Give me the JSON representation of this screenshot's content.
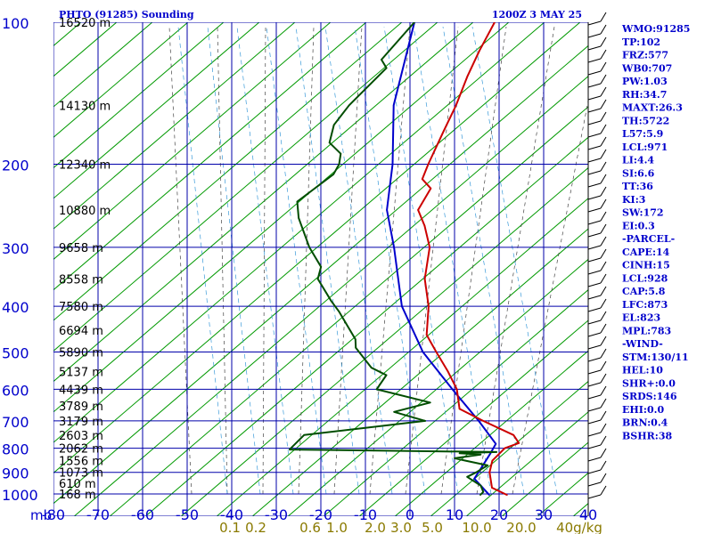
{
  "title": "PHTO (91285) Sounding",
  "valid_time": "1200Z  3 MAY 25",
  "colors": {
    "grid": "#0000aa",
    "label_blue": "#0000cc",
    "label_olive": "#8a7a00",
    "dry_adiabat": "#009900",
    "moist_adiabat": "#444444",
    "mixing_ratio": "#3a9ad9",
    "temperature": "#cc0000",
    "dewpoint": "#004d00",
    "parcel": "#0000cc",
    "wind": "#000000"
  },
  "indices": [
    "WMO:91285",
    "TP:102",
    "FRZ:577",
    "WB0:707",
    "PW:1.03",
    "RH:34.7",
    "MAXT:26.3",
    "TH:5722",
    "L57:5.9",
    "LCL:971",
    "LI:4.4",
    "SI:6.6",
    "TT:36",
    "KI:3",
    "SW:172",
    "EI:0.3",
    "-PARCEL-",
    "CAPE:14",
    "CINH:15",
    "LCL:928",
    "CAP:5.8",
    "LFC:873",
    "EL:823",
    "MPL:783",
    "-WIND-",
    "STM:130/11",
    "HEL:10",
    "SHR+:0.0",
    "SRDS:146",
    "EHI:0.0",
    "BRN:0.4",
    "BSHR:38"
  ],
  "chart_data": {
    "type": "skew-t",
    "x_unit_label": "mb",
    "mixing_ratio_unit": "g/kg",
    "xlim": [
      -80,
      40
    ],
    "plim": [
      1000,
      100
    ],
    "x_ticks": [
      -80,
      -70,
      -60,
      -50,
      -40,
      -30,
      -20,
      -10,
      0,
      10,
      20,
      30,
      40
    ],
    "pressure_ticks": [
      100,
      200,
      300,
      400,
      500,
      600,
      700,
      800,
      900,
      1000
    ],
    "mixing_ratio_labels": [
      "0.1",
      "0.2",
      "0.6",
      "1.0",
      "2.0",
      "3.0",
      "5.0",
      "10.0",
      "20.0",
      "40g/kg"
    ],
    "heights": [
      {
        "p": 100,
        "label": "16520 m"
      },
      {
        "p": 150,
        "label": "14130 m"
      },
      {
        "p": 200,
        "label": "12340 m"
      },
      {
        "p": 250,
        "label": "10880 m"
      },
      {
        "p": 300,
        "label": "9658 m"
      },
      {
        "p": 350,
        "label": "8558 m"
      },
      {
        "p": 400,
        "label": "7580 m"
      },
      {
        "p": 450,
        "label": "6694 m"
      },
      {
        "p": 500,
        "label": "5890 m"
      },
      {
        "p": 550,
        "label": "5137 m"
      },
      {
        "p": 600,
        "label": "4439 m"
      },
      {
        "p": 650,
        "label": "3789 m"
      },
      {
        "p": 700,
        "label": "3179 m"
      },
      {
        "p": 750,
        "label": "2603 m"
      },
      {
        "p": 800,
        "label": "2062 m"
      },
      {
        "p": 850,
        "label": "1556 m"
      },
      {
        "p": 900,
        "label": "1073 m"
      },
      {
        "p": 950,
        "label": "610 m"
      },
      {
        "p": 1000,
        "label": "168 m"
      }
    ],
    "temperature": [
      {
        "p": 1005,
        "x": 22
      },
      {
        "p": 970,
        "x": 17
      },
      {
        "p": 900,
        "x": 13
      },
      {
        "p": 850,
        "x": 11
      },
      {
        "p": 800,
        "x": 11
      },
      {
        "p": 780,
        "x": 13
      },
      {
        "p": 750,
        "x": 10
      },
      {
        "p": 700,
        "x": 0
      },
      {
        "p": 660,
        "x": -8
      },
      {
        "p": 600,
        "x": -13
      },
      {
        "p": 550,
        "x": -19
      },
      {
        "p": 500,
        "x": -26
      },
      {
        "p": 460,
        "x": -32
      },
      {
        "p": 400,
        "x": -38
      },
      {
        "p": 350,
        "x": -45
      },
      {
        "p": 300,
        "x": -51
      },
      {
        "p": 270,
        "x": -57
      },
      {
        "p": 250,
        "x": -62
      },
      {
        "p": 225,
        "x": -64
      },
      {
        "p": 215,
        "x": -68
      },
      {
        "p": 200,
        "x": -70
      },
      {
        "p": 170,
        "x": -74
      },
      {
        "p": 150,
        "x": -77
      },
      {
        "p": 130,
        "x": -81
      },
      {
        "p": 115,
        "x": -84
      },
      {
        "p": 100,
        "x": -87
      }
    ],
    "dewpoint": [
      {
        "p": 1005,
        "x": 16
      },
      {
        "p": 990,
        "x": 16
      },
      {
        "p": 960,
        "x": 14
      },
      {
        "p": 920,
        "x": 9
      },
      {
        "p": 900,
        "x": 10
      },
      {
        "p": 870,
        "x": 11
      },
      {
        "p": 850,
        "x": 5
      },
      {
        "p": 840,
        "x": 2
      },
      {
        "p": 825,
        "x": 7
      },
      {
        "p": 820,
        "x": 2
      },
      {
        "p": 815,
        "x": 10
      },
      {
        "p": 805,
        "x": -37
      },
      {
        "p": 750,
        "x": -37
      },
      {
        "p": 700,
        "x": -13
      },
      {
        "p": 670,
        "x": -22
      },
      {
        "p": 640,
        "x": -16
      },
      {
        "p": 600,
        "x": -31
      },
      {
        "p": 560,
        "x": -32
      },
      {
        "p": 540,
        "x": -37
      },
      {
        "p": 490,
        "x": -45
      },
      {
        "p": 470,
        "x": -47
      },
      {
        "p": 410,
        "x": -57
      },
      {
        "p": 390,
        "x": -61
      },
      {
        "p": 350,
        "x": -69
      },
      {
        "p": 330,
        "x": -71
      },
      {
        "p": 300,
        "x": -78
      },
      {
        "p": 260,
        "x": -87
      },
      {
        "p": 240,
        "x": -91
      },
      {
        "p": 210,
        "x": -89
      },
      {
        "p": 200,
        "x": -90
      },
      {
        "p": 190,
        "x": -92
      },
      {
        "p": 180,
        "x": -97
      },
      {
        "p": 165,
        "x": -100
      },
      {
        "p": 150,
        "x": -101
      },
      {
        "p": 125,
        "x": -101
      },
      {
        "p": 120,
        "x": -104
      },
      {
        "p": 100,
        "x": -105
      }
    ],
    "parcel": [
      {
        "p": 1005,
        "x": 18
      },
      {
        "p": 960,
        "x": 14
      },
      {
        "p": 928,
        "x": 11
      },
      {
        "p": 873,
        "x": 10
      },
      {
        "p": 823,
        "x": 9
      },
      {
        "p": 783,
        "x": 8
      },
      {
        "p": 700,
        "x": -1
      },
      {
        "p": 600,
        "x": -14
      },
      {
        "p": 500,
        "x": -29
      },
      {
        "p": 400,
        "x": -44
      },
      {
        "p": 300,
        "x": -59
      },
      {
        "p": 250,
        "x": -69
      },
      {
        "p": 200,
        "x": -78
      },
      {
        "p": 150,
        "x": -91
      },
      {
        "p": 100,
        "x": -105
      }
    ]
  }
}
